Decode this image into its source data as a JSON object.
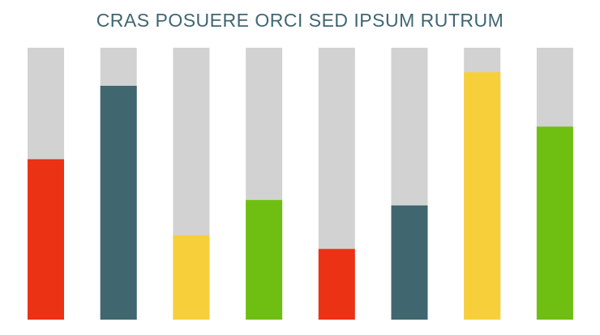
{
  "chart_data": {
    "type": "bar",
    "title": "CRAS POSUERE ORCI SED IPSUM RUTRUM",
    "xlabel": "",
    "ylabel": "",
    "ylim": [
      0,
      100
    ],
    "grid": false,
    "legend": "none",
    "track_color": "#d2d2d2",
    "values": [
      59,
      86,
      31,
      44,
      26,
      42,
      91,
      71
    ],
    "colors": [
      "#eb3214",
      "#40666f",
      "#f7cf3b",
      "#6fbf13",
      "#eb3214",
      "#40666f",
      "#f7cf3b",
      "#6fbf13"
    ]
  },
  "colors": {
    "title": "#3f6673",
    "red": "#eb3214",
    "slate": "#40666f",
    "yellow": "#f7cf3b",
    "green": "#6fbf13",
    "track": "#d2d2d2"
  }
}
